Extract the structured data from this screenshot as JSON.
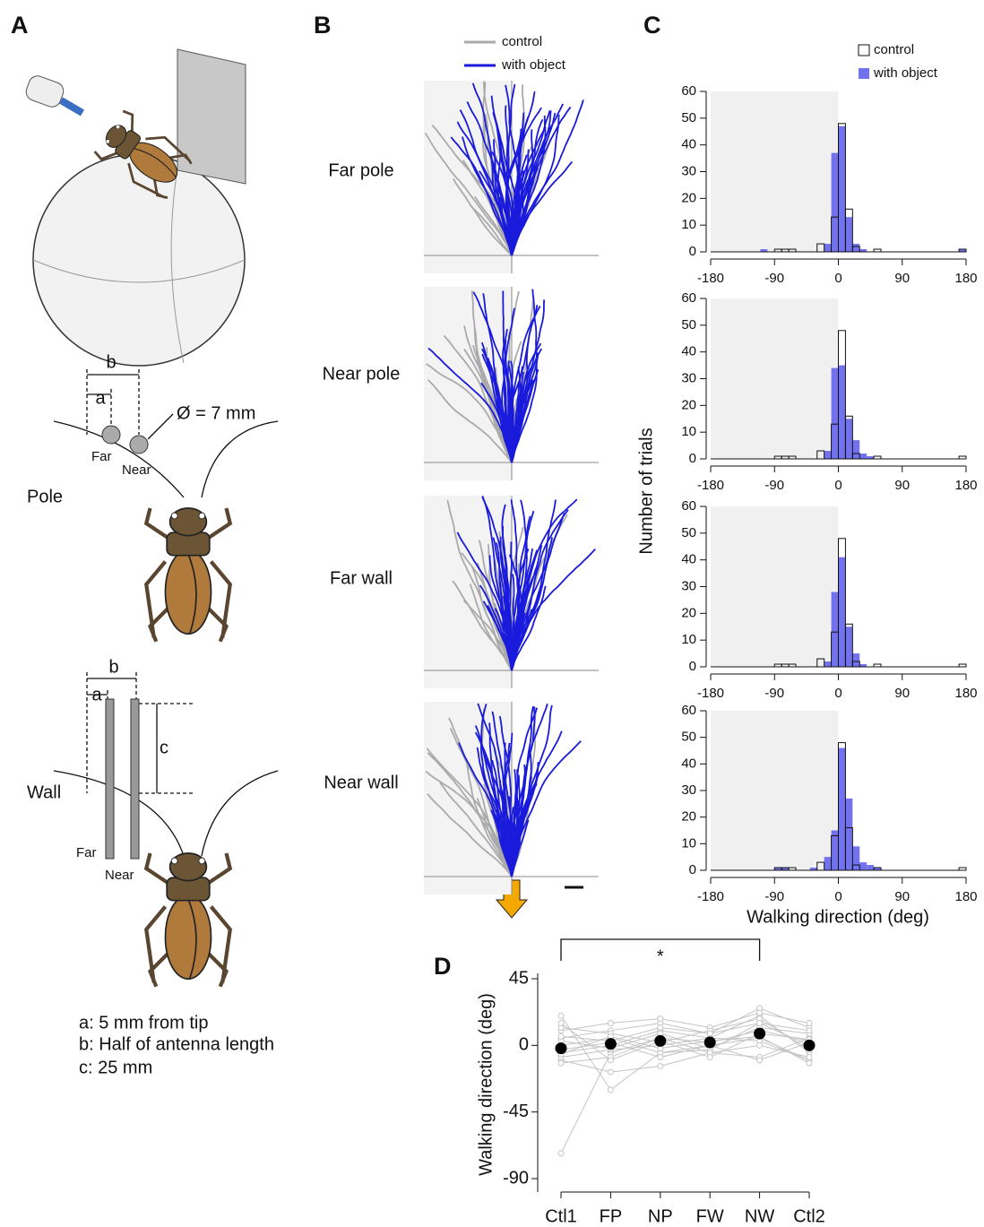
{
  "panel_labels": [
    "A",
    "B",
    "C",
    "D"
  ],
  "panel_a": {
    "pole": {
      "title": "Pole",
      "a": "a",
      "b": "b",
      "diameter": "Ø = 7 mm",
      "far": "Far",
      "near": "Near"
    },
    "wall": {
      "title": "Wall",
      "a": "a",
      "b": "b",
      "c": "c",
      "far": "Far",
      "near": "Near"
    },
    "notes": [
      "a: 5 mm from tip",
      "b: Half of antenna length",
      "c: 25 mm"
    ]
  },
  "panel_b": {
    "legend": [
      {
        "name": "control",
        "color": "#aaaaaa"
      },
      {
        "name": "with object",
        "color": "#1a1adc"
      }
    ],
    "rows": [
      "Far pole",
      "Near pole",
      "Far wall",
      "Near wall"
    ]
  },
  "panel_c": {
    "y_label": "Number of trials",
    "x_label": "Walking direction (deg)"
  },
  "chart_data": [
    {
      "type": "histogram",
      "bins": [
        -180,
        -170,
        -160,
        -150,
        -140,
        -130,
        -120,
        -110,
        -100,
        -90,
        -80,
        -70,
        -60,
        -50,
        -40,
        -30,
        -20,
        -10,
        0,
        10,
        20,
        30,
        40,
        50,
        60,
        70,
        80,
        90,
        100,
        110,
        120,
        130,
        140,
        150,
        160,
        170,
        180
      ],
      "series": [
        {
          "name": "with object",
          "color": "#7272ee",
          "values": [
            0,
            0,
            0,
            0,
            0,
            0,
            0,
            1,
            0,
            0,
            0,
            0,
            0,
            0,
            0,
            0,
            3,
            37,
            47,
            13,
            3,
            1,
            0,
            0,
            0,
            0,
            0,
            0,
            0,
            0,
            0,
            0,
            0,
            0,
            0,
            1
          ]
        },
        {
          "name": "control",
          "color": "#111111",
          "values": [
            0,
            0,
            0,
            0,
            0,
            0,
            0,
            0,
            0,
            1,
            1,
            1,
            0,
            0,
            0,
            3,
            0,
            13,
            48,
            16,
            2,
            0,
            0,
            1,
            0,
            0,
            0,
            0,
            0,
            0,
            0,
            0,
            0,
            0,
            0,
            1
          ]
        }
      ],
      "xlim": [
        -180,
        180
      ],
      "ylim": [
        0,
        60
      ],
      "xticks": [
        -180,
        -90,
        0,
        90,
        180
      ],
      "yticks": [
        0,
        10,
        20,
        30,
        40,
        50,
        60
      ],
      "shaded_region": [
        -180,
        0
      ]
    },
    {
      "type": "histogram",
      "bins": [
        -180,
        -170,
        -160,
        -150,
        -140,
        -130,
        -120,
        -110,
        -100,
        -90,
        -80,
        -70,
        -60,
        -50,
        -40,
        -30,
        -20,
        -10,
        0,
        10,
        20,
        30,
        40,
        50,
        60,
        70,
        80,
        90,
        100,
        110,
        120,
        130,
        140,
        150,
        160,
        170,
        180
      ],
      "series": [
        {
          "color": "#7272ee",
          "values": [
            0,
            0,
            0,
            0,
            0,
            0,
            0,
            0,
            0,
            0,
            0,
            0,
            0,
            0,
            0,
            0,
            3,
            34,
            35,
            15,
            7,
            2,
            1,
            0,
            0,
            0,
            0,
            0,
            0,
            0,
            0,
            0,
            0,
            0,
            0,
            0
          ]
        },
        {
          "color": "#111111",
          "values": [
            0,
            0,
            0,
            0,
            0,
            0,
            0,
            0,
            0,
            1,
            1,
            1,
            0,
            0,
            0,
            3,
            0,
            13,
            48,
            16,
            2,
            0,
            0,
            1,
            0,
            0,
            0,
            0,
            0,
            0,
            0,
            0,
            0,
            0,
            0,
            1
          ]
        }
      ],
      "xlim": [
        -180,
        180
      ],
      "ylim": [
        0,
        60
      ],
      "xticks": [
        -180,
        -90,
        0,
        90,
        180
      ],
      "yticks": [
        0,
        10,
        20,
        30,
        40,
        50,
        60
      ],
      "shaded_region": [
        -180,
        0
      ]
    },
    {
      "type": "histogram",
      "bins": [
        -180,
        -170,
        -160,
        -150,
        -140,
        -130,
        -120,
        -110,
        -100,
        -90,
        -80,
        -70,
        -60,
        -50,
        -40,
        -30,
        -20,
        -10,
        0,
        10,
        20,
        30,
        40,
        50,
        60,
        70,
        80,
        90,
        100,
        110,
        120,
        130,
        140,
        150,
        160,
        170,
        180
      ],
      "series": [
        {
          "color": "#7272ee",
          "values": [
            0,
            0,
            0,
            0,
            0,
            0,
            0,
            0,
            0,
            0,
            0,
            0,
            0,
            0,
            0,
            0,
            2,
            28,
            41,
            15,
            5,
            1,
            0,
            0,
            0,
            0,
            0,
            0,
            0,
            0,
            0,
            0,
            0,
            0,
            0,
            0
          ]
        },
        {
          "color": "#111111",
          "values": [
            0,
            0,
            0,
            0,
            0,
            0,
            0,
            0,
            0,
            1,
            1,
            1,
            0,
            0,
            0,
            3,
            0,
            13,
            48,
            16,
            2,
            0,
            0,
            1,
            0,
            0,
            0,
            0,
            0,
            0,
            0,
            0,
            0,
            0,
            0,
            1
          ]
        }
      ],
      "xlim": [
        -180,
        180
      ],
      "ylim": [
        0,
        60
      ],
      "xticks": [
        -180,
        -90,
        0,
        90,
        180
      ],
      "yticks": [
        0,
        10,
        20,
        30,
        40,
        50,
        60
      ],
      "shaded_region": [
        -180,
        0
      ]
    },
    {
      "type": "histogram",
      "bins": [
        -180,
        -170,
        -160,
        -150,
        -140,
        -130,
        -120,
        -110,
        -100,
        -90,
        -80,
        -70,
        -60,
        -50,
        -40,
        -30,
        -20,
        -10,
        0,
        10,
        20,
        30,
        40,
        50,
        60,
        70,
        80,
        90,
        100,
        110,
        120,
        130,
        140,
        150,
        160,
        170,
        180
      ],
      "series": [
        {
          "color": "#7272ee",
          "values": [
            0,
            0,
            0,
            0,
            0,
            0,
            0,
            0,
            0,
            1,
            1,
            0,
            0,
            0,
            1,
            0,
            5,
            15,
            46,
            27,
            9,
            3,
            2,
            1,
            0,
            0,
            0,
            0,
            0,
            0,
            0,
            0,
            0,
            0,
            0,
            0
          ]
        },
        {
          "color": "#111111",
          "values": [
            0,
            0,
            0,
            0,
            0,
            0,
            0,
            0,
            0,
            1,
            1,
            1,
            0,
            0,
            0,
            3,
            0,
            13,
            48,
            16,
            2,
            0,
            0,
            1,
            0,
            0,
            0,
            0,
            0,
            0,
            0,
            0,
            0,
            0,
            0,
            1
          ]
        }
      ],
      "xlim": [
        -180,
        180
      ],
      "ylim": [
        0,
        60
      ],
      "xticks": [
        -180,
        -90,
        0,
        90,
        180
      ],
      "yticks": [
        0,
        10,
        20,
        30,
        40,
        50,
        60
      ],
      "shaded_region": [
        -180,
        0
      ]
    },
    {
      "type": "line",
      "y_label": "Walking direction (deg)",
      "categories": [
        "Ctl1",
        "FP",
        "NP",
        "FW",
        "NW",
        "Ctl2"
      ],
      "ylim": [
        -90,
        45
      ],
      "yticks": [
        -90,
        -45,
        0,
        45
      ],
      "significance": {
        "between": [
          "Ctl1",
          "NW"
        ],
        "label": "*"
      },
      "series": [
        {
          "color": "#c4c4c4",
          "values": [
            -73,
            -5,
            5,
            2,
            10,
            3
          ]
        },
        {
          "color": "#c4c4c4",
          "values": [
            20,
            -30,
            -5,
            0,
            5,
            -10
          ]
        },
        {
          "color": "#c4c4c4",
          "values": [
            -10,
            -18,
            -14,
            -5,
            -8,
            5
          ]
        },
        {
          "color": "#c4c4c4",
          "values": [
            5,
            10,
            15,
            8,
            25,
            12
          ]
        },
        {
          "color": "#c4c4c4",
          "values": [
            -5,
            0,
            10,
            5,
            20,
            -5
          ]
        },
        {
          "color": "#c4c4c4",
          "values": [
            0,
            5,
            -5,
            -3,
            15,
            0
          ]
        },
        {
          "color": "#c4c4c4",
          "values": [
            10,
            15,
            18,
            12,
            22,
            15
          ]
        },
        {
          "color": "#c4c4c4",
          "values": [
            -8,
            -3,
            0,
            5,
            3,
            -10
          ]
        },
        {
          "color": "#c4c4c4",
          "values": [
            3,
            -2,
            8,
            -2,
            12,
            8
          ]
        },
        {
          "color": "#c4c4c4",
          "values": [
            -3,
            2,
            -8,
            0,
            -10,
            2
          ]
        },
        {
          "color": "#c4c4c4",
          "values": [
            12,
            8,
            2,
            10,
            18,
            -3
          ]
        },
        {
          "color": "#c4c4c4",
          "values": [
            -12,
            -8,
            5,
            -5,
            0,
            -8
          ]
        },
        {
          "color": "#c4c4c4",
          "values": [
            6,
            3,
            12,
            8,
            15,
            10
          ]
        },
        {
          "color": "#c4c4c4",
          "values": [
            -6,
            6,
            -2,
            3,
            6,
            -12
          ]
        },
        {
          "color": "#c4c4c4",
          "values": [
            15,
            -10,
            3,
            -8,
            8,
            4
          ]
        },
        {
          "color": "#000000",
          "values": [
            -2,
            1,
            3,
            2,
            8,
            0
          ]
        }
      ]
    }
  ]
}
